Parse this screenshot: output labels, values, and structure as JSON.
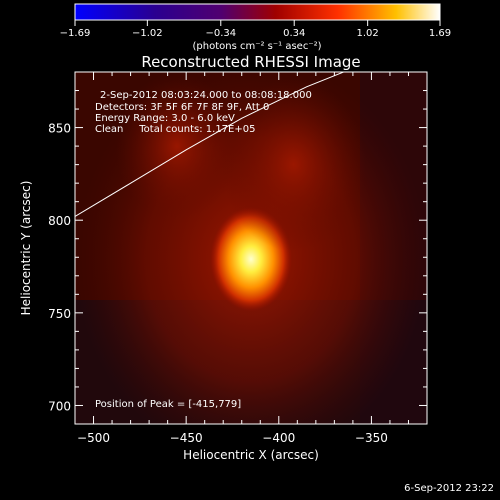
{
  "chart_data": {
    "type": "heatmap",
    "title": "Reconstructed RHESSI Image",
    "xlabel": "Heliocentric X (arcsec)",
    "ylabel": "Heliocentric Y (arcsec)",
    "xlim": [
      -510,
      -320
    ],
    "ylim": [
      690,
      880
    ],
    "x_ticks": [
      -500,
      -450,
      -400,
      -350
    ],
    "y_ticks": [
      700,
      750,
      800,
      850
    ],
    "x_tick_labels": [
      "−500",
      "−450",
      "−400",
      "−350"
    ],
    "y_tick_labels": [
      "700",
      "750",
      "800",
      "850"
    ],
    "colorbar": {
      "min": -1.69,
      "max": 1.69,
      "ticks": [
        -1.69,
        -1.02,
        -0.34,
        0.34,
        1.02,
        1.69
      ],
      "tick_labels": [
        "−1.69",
        "−1.02",
        "−0.34",
        "0.34",
        "1.02",
        "1.69"
      ],
      "label": "(photons cm⁻² s⁻¹ asec⁻²)"
    },
    "sources": [
      {
        "x": -415,
        "y": 779,
        "relative_intensity": 1.0
      },
      {
        "x": -392,
        "y": 830,
        "relative_intensity": 0.35
      },
      {
        "x": -455,
        "y": 840,
        "relative_intensity": 0.2
      }
    ],
    "peak": {
      "x": -415,
      "y": 779
    },
    "info_lines": [
      "2-Sep-2012 08:03:24.000 to 08:08:18.000",
      "Detectors: 3F 5F 6F 7F 8F 9F, Att 0",
      "Energy Range: 3.0 - 6.0 keV",
      "Clean     Total counts: 1.17E+05"
    ],
    "peak_label": "Position of Peak = [-415,779]",
    "footer_date": "6-Sep-2012 23:22",
    "limb_curve": [
      [
        -510,
        802
      ],
      [
        -480,
        820
      ],
      [
        -450,
        838
      ],
      [
        -420,
        855
      ],
      [
        -385,
        872
      ],
      [
        -360,
        882
      ]
    ],
    "colors": {
      "background": "#000000",
      "colormap_stops": [
        "#0000ff",
        "#2a0080",
        "#5a006a",
        "#a00000",
        "#ff4000",
        "#ffff00",
        "#ffffff"
      ]
    }
  }
}
